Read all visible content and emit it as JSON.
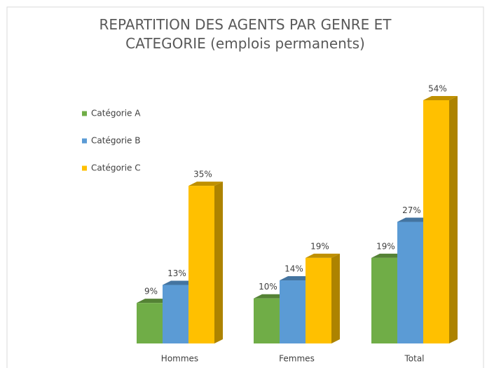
{
  "chart_data": {
    "type": "bar3d",
    "title": "REPARTITION DES AGENTS PAR GENRE ET CATEGORIE (emplois permanents)",
    "categories": [
      "Hommes",
      "Femmes",
      "Total"
    ],
    "series": [
      {
        "name": "Catégorie A",
        "color": "#70ad47",
        "values": [
          9,
          10,
          19
        ],
        "value_labels": [
          "9%",
          "10%",
          "19%"
        ]
      },
      {
        "name": "Catégorie B",
        "color": "#5b9bd5",
        "values": [
          13,
          14,
          27
        ],
        "value_labels": [
          "13%",
          "14%",
          "27%"
        ]
      },
      {
        "name": "Catégorie C",
        "color": "#ffc000",
        "values": [
          35,
          19,
          54
        ],
        "value_labels": [
          "35%",
          "19%",
          "54%"
        ]
      }
    ],
    "legend": "left"
  }
}
